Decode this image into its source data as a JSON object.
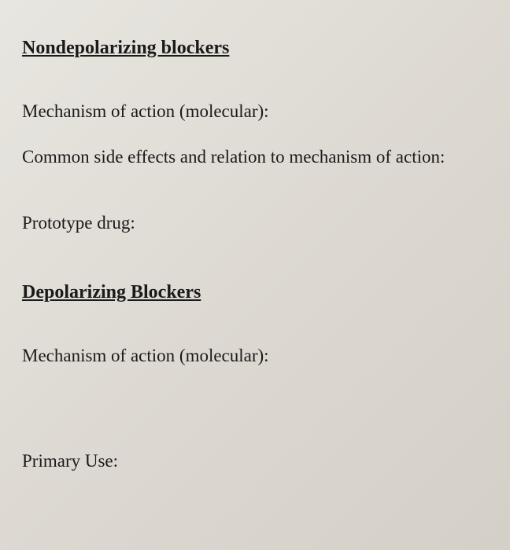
{
  "section1": {
    "heading": "Nondepolarizing blockers",
    "field1": "Mechanism of action (molecular):",
    "field2": "Common side effects and relation to mechanism of action:",
    "field3": "Prototype drug:"
  },
  "section2": {
    "heading": "Depolarizing Blockers",
    "field1": "Mechanism of action (molecular):",
    "field2": "Primary Use:"
  }
}
